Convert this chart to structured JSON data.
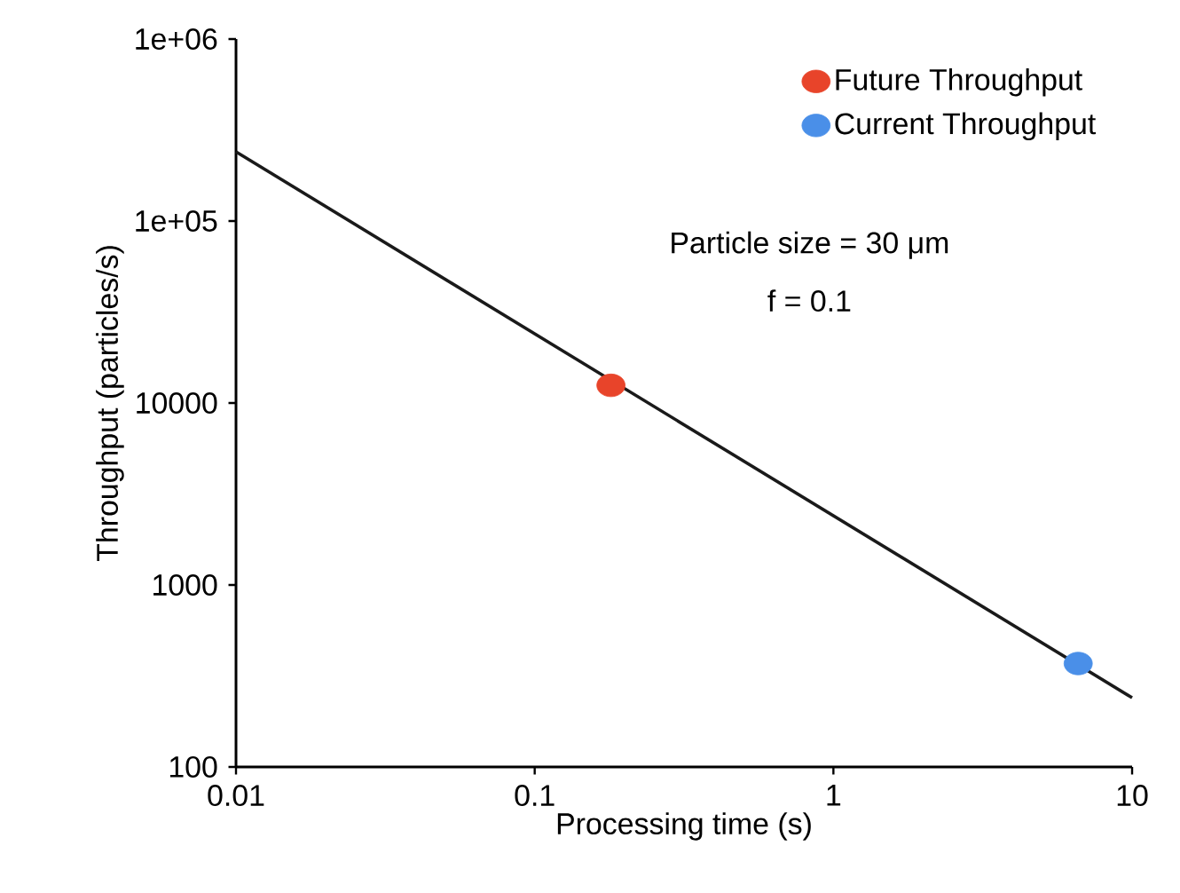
{
  "chart_data": {
    "type": "scatter",
    "xlabel": "Processing time (s)",
    "ylabel": "Throughput (particles/s)",
    "log": "xy",
    "xlim": [
      0.01,
      10
    ],
    "ylim": [
      100,
      1000000
    ],
    "xticks": [
      {
        "value": 0.01,
        "label": "0.01"
      },
      {
        "value": 0.1,
        "label": "0.1"
      },
      {
        "value": 1,
        "label": "1"
      },
      {
        "value": 10,
        "label": "10"
      }
    ],
    "yticks": [
      {
        "value": 100,
        "label": "100"
      },
      {
        "value": 1000,
        "label": "1000"
      },
      {
        "value": 10000,
        "label": "10000"
      },
      {
        "value": 100000,
        "label": "1e+05"
      },
      {
        "value": 1000000,
        "label": "1e+06"
      }
    ],
    "legend": "top right",
    "marker": "circle",
    "grid": false,
    "annotations": [
      "Particle size = 30 μm",
      "f = 0.1"
    ],
    "series": [
      {
        "type": "line",
        "color": "#1a1a1a",
        "x": [
          0.01,
          10
        ],
        "values": [
          240000,
          240
        ],
        "marker": "none"
      },
      {
        "name": "Future Throughput",
        "color": "#e8442a",
        "x": [
          0.18
        ],
        "values": [
          12500
        ]
      },
      {
        "name": "Current Throughput",
        "color": "#4a8fe8",
        "x": [
          6.6
        ],
        "values": [
          370
        ]
      }
    ]
  }
}
